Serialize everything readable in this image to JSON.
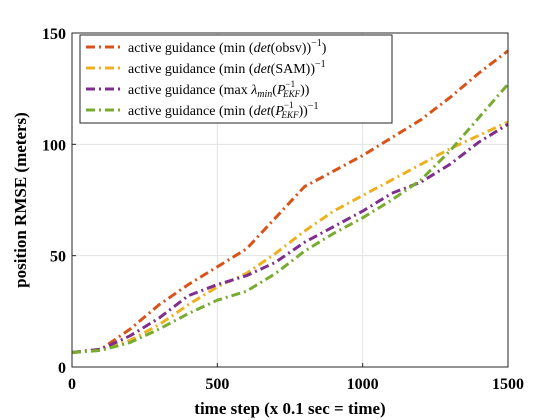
{
  "chart_data": {
    "type": "line",
    "xlabel": "time step (x 0.1 sec = time)",
    "ylabel": "position RMSE (meters)",
    "xlim": [
      0,
      1500
    ],
    "ylim": [
      0,
      150
    ],
    "xticks": [
      0,
      500,
      1000,
      1500
    ],
    "yticks": [
      0,
      50,
      100,
      150
    ],
    "grid": true,
    "legend_position": "top-left",
    "line_style": "dash-dot",
    "series": [
      {
        "name": "active guidance (min (det(obsv))^-1)",
        "legend_parts": [
          "active guidance (min (",
          "det",
          "(obsv))",
          "−1",
          ")"
        ],
        "color": "#D95319",
        "x": [
          0,
          100,
          200,
          300,
          400,
          500,
          600,
          700,
          800,
          900,
          1000,
          1100,
          1200,
          1300,
          1400,
          1500
        ],
        "y": [
          6.5,
          8,
          17,
          28,
          37,
          45,
          53,
          67,
          81,
          88,
          95,
          103,
          111,
          121,
          132,
          142
        ]
      },
      {
        "name": "active guidance (min (det(SAM))^-1)",
        "legend_parts": [
          "active guidance (min (",
          "det",
          "(SAM))",
          "−1",
          ""
        ],
        "color": "#EDB120",
        "x": [
          0,
          100,
          200,
          300,
          400,
          500,
          600,
          700,
          800,
          900,
          1000,
          1100,
          1200,
          1300,
          1400,
          1500
        ],
        "y": [
          6.5,
          7.5,
          12,
          19,
          28,
          36,
          42,
          51,
          61,
          70,
          77,
          84,
          91,
          98,
          104,
          110
        ]
      },
      {
        "name": "active guidance (max λmin(P_EKF^-1))",
        "legend_parts": [
          "active guidance (max ",
          "λ",
          "min",
          "(",
          "P",
          "EKF",
          "−1",
          "))"
        ],
        "color": "#7E2F8E",
        "x": [
          0,
          100,
          200,
          300,
          400,
          500,
          600,
          700,
          800,
          900,
          1000,
          1100,
          1200,
          1300,
          1400,
          1500
        ],
        "y": [
          6.5,
          8,
          14,
          22,
          32,
          37,
          41,
          47,
          56,
          63,
          70,
          78,
          83,
          91,
          101,
          109
        ]
      },
      {
        "name": "active guidance (min (det(P_EKF^-1))^-1)",
        "legend_parts": [
          "active guidance (min (",
          "det",
          "(",
          "P",
          "EKF",
          "−1",
          "))",
          "−1",
          ""
        ],
        "color": "#77AC30",
        "x": [
          0,
          100,
          200,
          300,
          400,
          500,
          600,
          700,
          800,
          900,
          1000,
          1100,
          1200,
          1300,
          1400,
          1500
        ],
        "y": [
          6.5,
          7.5,
          11,
          17,
          24,
          30,
          34,
          42,
          52,
          60,
          67,
          75,
          84,
          97,
          112,
          127
        ]
      }
    ]
  }
}
